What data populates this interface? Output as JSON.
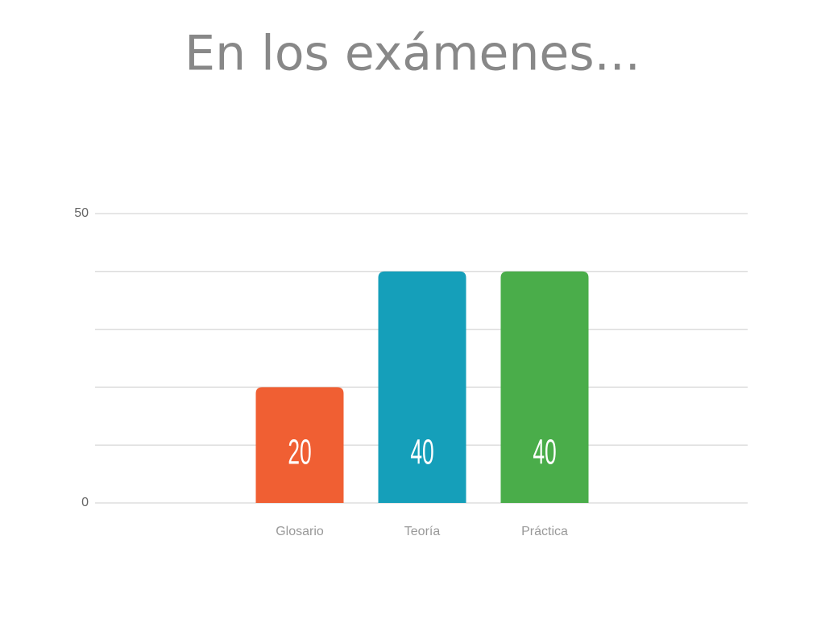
{
  "chart_data": {
    "type": "bar",
    "title": "En los exámenes...",
    "categories": [
      "Glosario",
      "Teoría",
      "Práctica"
    ],
    "values": [
      20,
      40,
      40
    ],
    "colors": [
      "#f05f33",
      "#159fba",
      "#4aad4a"
    ],
    "ylim": [
      0,
      50
    ],
    "yticks": [
      0,
      50
    ],
    "minor_yticks": [
      10,
      20,
      30,
      40
    ],
    "grid": true
  }
}
